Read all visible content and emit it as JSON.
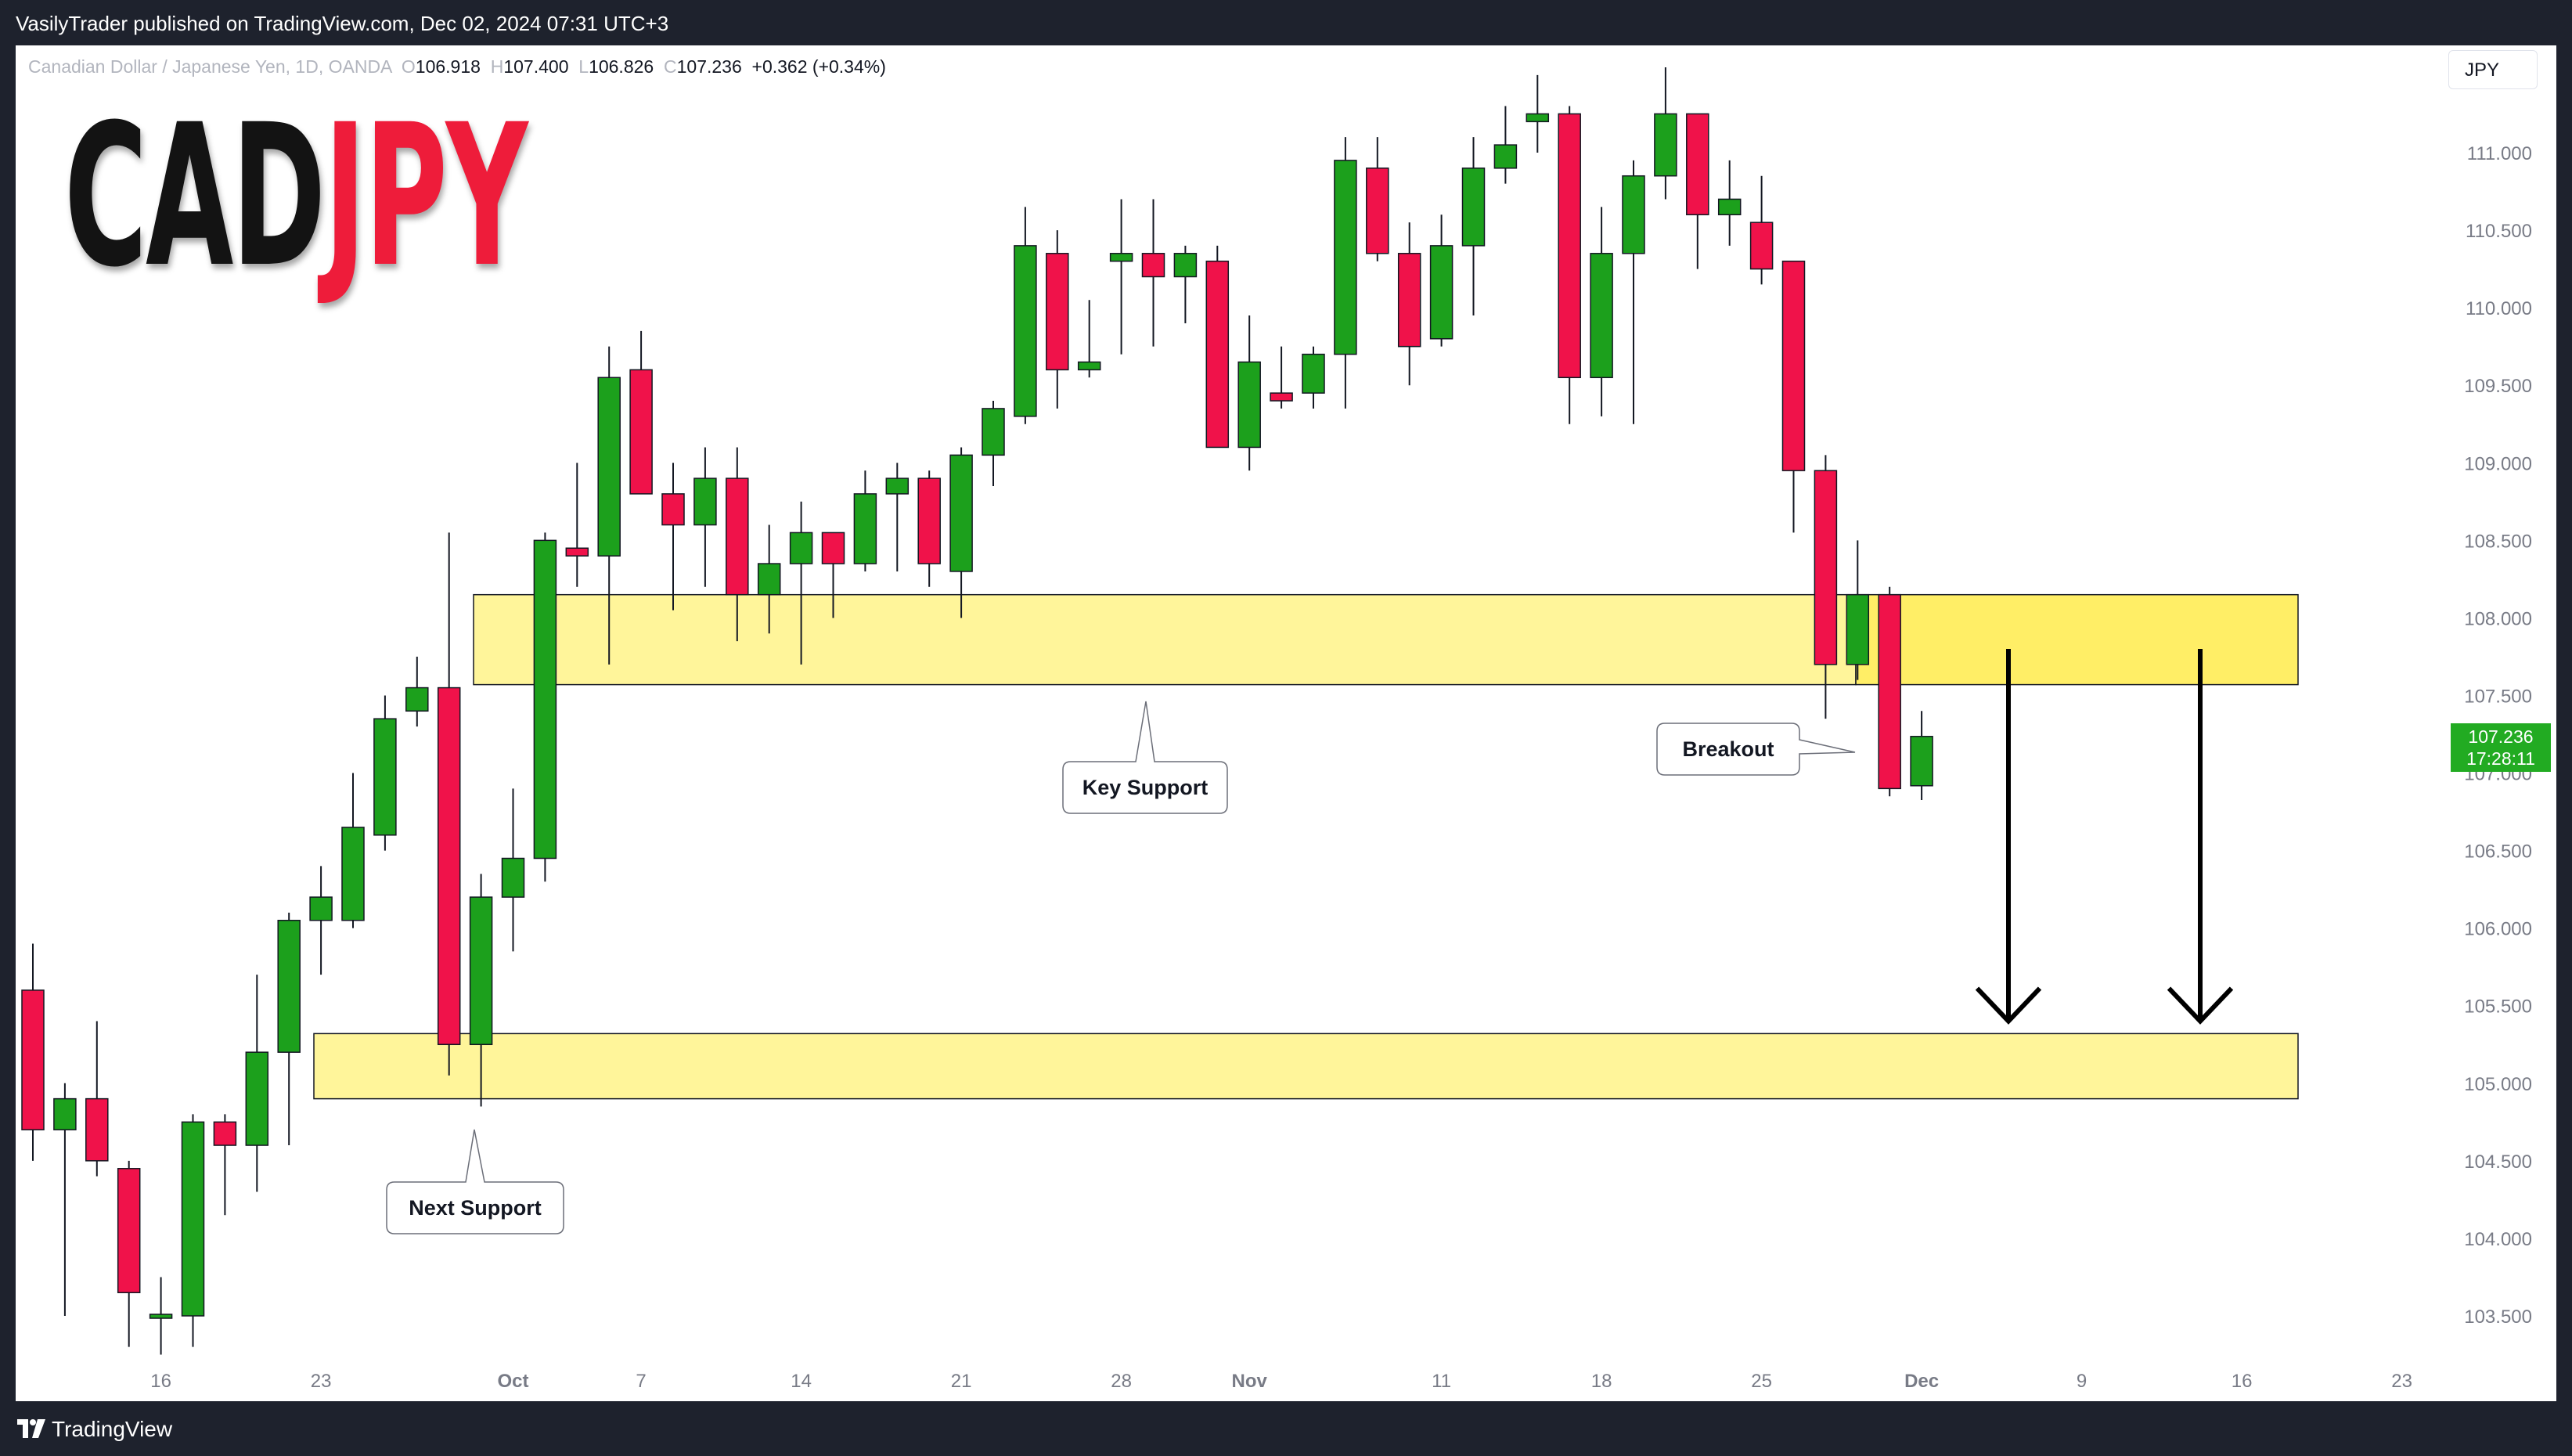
{
  "header": {
    "published": "VasilyTrader published on TradingView.com, Dec 02, 2024 07:31 UTC+3"
  },
  "symbol": {
    "name": "Canadian Dollar / Japanese Yen, 1D, OANDA",
    "open_label": "O",
    "open": "106.918",
    "high_label": "H",
    "high": "107.400",
    "low_label": "L",
    "low": "106.826",
    "close_label": "C",
    "close": "107.236",
    "change": "+0.362 (+0.34%)"
  },
  "title": {
    "base": "CAD",
    "quote": "JPY"
  },
  "currency": "JPY",
  "price_tag": {
    "price": "107.236",
    "countdown": "17:28:11"
  },
  "footer": {
    "brand": "TradingView"
  },
  "colors": {
    "up": "#1ca01c",
    "down": "#f0124a",
    "zone": "#fff59a",
    "zone_active": "#ffee66",
    "title_quote": "#ee1c3a",
    "price_tag": "#22ab22"
  },
  "chart_data": {
    "type": "candlestick",
    "yaxis": {
      "ticks": [
        "111.000",
        "110.500",
        "110.000",
        "109.500",
        "109.000",
        "108.500",
        "108.000",
        "107.500",
        "107.000",
        "106.500",
        "106.000",
        "105.500",
        "105.000",
        "104.500",
        "104.000",
        "103.500"
      ],
      "ylim": [
        103.0,
        111.8
      ]
    },
    "xaxis": {
      "ticks": [
        {
          "label": "16",
          "bold": false,
          "index": 4
        },
        {
          "label": "23",
          "bold": false,
          "index": 9
        },
        {
          "label": "Oct",
          "bold": true,
          "index": 15
        },
        {
          "label": "7",
          "bold": false,
          "index": 19
        },
        {
          "label": "14",
          "bold": false,
          "index": 24
        },
        {
          "label": "21",
          "bold": false,
          "index": 29
        },
        {
          "label": "28",
          "bold": false,
          "index": 34
        },
        {
          "label": "Nov",
          "bold": true,
          "index": 38
        },
        {
          "label": "11",
          "bold": false,
          "index": 44
        },
        {
          "label": "18",
          "bold": false,
          "index": 49
        },
        {
          "label": "25",
          "bold": false,
          "index": 54
        },
        {
          "label": "Dec",
          "bold": true,
          "index": 59
        },
        {
          "label": "9",
          "bold": false,
          "index": 64
        },
        {
          "label": "16",
          "bold": false,
          "index": 69
        },
        {
          "label": "23",
          "bold": false,
          "index": 74
        }
      ]
    },
    "candles": [
      {
        "o": 105.6,
        "h": 105.9,
        "l": 104.5,
        "c": 104.7
      },
      {
        "o": 104.7,
        "h": 105.0,
        "l": 103.5,
        "c": 104.9
      },
      {
        "o": 104.9,
        "h": 105.4,
        "l": 104.4,
        "c": 104.5
      },
      {
        "o": 104.45,
        "h": 104.5,
        "l": 103.3,
        "c": 103.65
      },
      {
        "o": 103.5,
        "h": 103.75,
        "l": 103.25,
        "c": 103.5
      },
      {
        "o": 103.5,
        "h": 104.8,
        "l": 103.3,
        "c": 104.75
      },
      {
        "o": 104.75,
        "h": 104.8,
        "l": 104.15,
        "c": 104.6
      },
      {
        "o": 104.6,
        "h": 105.7,
        "l": 104.3,
        "c": 105.2
      },
      {
        "o": 105.2,
        "h": 106.1,
        "l": 104.6,
        "c": 106.05
      },
      {
        "o": 106.05,
        "h": 106.4,
        "l": 105.7,
        "c": 106.2
      },
      {
        "o": 106.05,
        "h": 107.0,
        "l": 106.0,
        "c": 106.65
      },
      {
        "o": 106.6,
        "h": 107.5,
        "l": 106.5,
        "c": 107.35
      },
      {
        "o": 107.4,
        "h": 107.75,
        "l": 107.3,
        "c": 107.55
      },
      {
        "o": 107.55,
        "h": 108.55,
        "l": 105.05,
        "c": 105.25
      },
      {
        "o": 105.25,
        "h": 106.35,
        "l": 104.85,
        "c": 106.2
      },
      {
        "o": 106.2,
        "h": 106.9,
        "l": 105.85,
        "c": 106.45
      },
      {
        "o": 106.45,
        "h": 108.55,
        "l": 106.3,
        "c": 108.5
      },
      {
        "o": 108.45,
        "h": 109.0,
        "l": 108.2,
        "c": 108.4
      },
      {
        "o": 108.4,
        "h": 109.75,
        "l": 107.7,
        "c": 109.55
      },
      {
        "o": 109.6,
        "h": 109.85,
        "l": 108.8,
        "c": 108.8
      },
      {
        "o": 108.8,
        "h": 109.0,
        "l": 108.05,
        "c": 108.6
      },
      {
        "o": 108.6,
        "h": 109.1,
        "l": 108.2,
        "c": 108.9
      },
      {
        "o": 108.9,
        "h": 109.1,
        "l": 107.85,
        "c": 108.15
      },
      {
        "o": 108.15,
        "h": 108.6,
        "l": 107.9,
        "c": 108.35
      },
      {
        "o": 108.35,
        "h": 108.75,
        "l": 107.7,
        "c": 108.55
      },
      {
        "o": 108.55,
        "h": 108.55,
        "l": 108.0,
        "c": 108.35
      },
      {
        "o": 108.35,
        "h": 108.95,
        "l": 108.3,
        "c": 108.8
      },
      {
        "o": 108.8,
        "h": 109.0,
        "l": 108.3,
        "c": 108.9
      },
      {
        "o": 108.9,
        "h": 108.95,
        "l": 108.2,
        "c": 108.35
      },
      {
        "o": 108.3,
        "h": 109.1,
        "l": 108.0,
        "c": 109.05
      },
      {
        "o": 109.05,
        "h": 109.4,
        "l": 108.85,
        "c": 109.35
      },
      {
        "o": 109.3,
        "h": 110.65,
        "l": 109.25,
        "c": 110.4
      },
      {
        "o": 110.35,
        "h": 110.5,
        "l": 109.35,
        "c": 109.6
      },
      {
        "o": 109.6,
        "h": 110.05,
        "l": 109.55,
        "c": 109.65
      },
      {
        "o": 110.3,
        "h": 110.7,
        "l": 109.7,
        "c": 110.35
      },
      {
        "o": 110.35,
        "h": 110.7,
        "l": 109.75,
        "c": 110.2
      },
      {
        "o": 110.2,
        "h": 110.4,
        "l": 109.9,
        "c": 110.35
      },
      {
        "o": 110.3,
        "h": 110.4,
        "l": 109.1,
        "c": 109.1
      },
      {
        "o": 109.1,
        "h": 109.95,
        "l": 108.95,
        "c": 109.65
      },
      {
        "o": 109.45,
        "h": 109.75,
        "l": 109.35,
        "c": 109.4
      },
      {
        "o": 109.45,
        "h": 109.75,
        "l": 109.35,
        "c": 109.7
      },
      {
        "o": 109.7,
        "h": 111.1,
        "l": 109.35,
        "c": 110.95
      },
      {
        "o": 110.9,
        "h": 111.1,
        "l": 110.3,
        "c": 110.35
      },
      {
        "o": 110.35,
        "h": 110.55,
        "l": 109.5,
        "c": 109.75
      },
      {
        "o": 109.8,
        "h": 110.6,
        "l": 109.75,
        "c": 110.4
      },
      {
        "o": 110.4,
        "h": 111.1,
        "l": 109.95,
        "c": 110.9
      },
      {
        "o": 110.9,
        "h": 111.3,
        "l": 110.8,
        "c": 111.05
      },
      {
        "o": 111.2,
        "h": 111.5,
        "l": 111.0,
        "c": 111.25
      },
      {
        "o": 111.25,
        "h": 111.3,
        "l": 109.25,
        "c": 109.55
      },
      {
        "o": 109.55,
        "h": 110.65,
        "l": 109.3,
        "c": 110.35
      },
      {
        "o": 110.35,
        "h": 110.95,
        "l": 109.25,
        "c": 110.85
      },
      {
        "o": 110.85,
        "h": 111.55,
        "l": 110.7,
        "c": 111.25
      },
      {
        "o": 111.25,
        "h": 111.25,
        "l": 110.25,
        "c": 110.6
      },
      {
        "o": 110.6,
        "h": 110.95,
        "l": 110.4,
        "c": 110.7
      },
      {
        "o": 110.55,
        "h": 110.85,
        "l": 110.15,
        "c": 110.25
      },
      {
        "o": 110.3,
        "h": 110.3,
        "l": 108.55,
        "c": 108.95
      },
      {
        "o": 108.95,
        "h": 109.05,
        "l": 107.35,
        "c": 107.7
      },
      {
        "o": 107.7,
        "h": 108.5,
        "l": 107.6,
        "c": 108.15
      },
      {
        "o": 108.15,
        "h": 108.2,
        "l": 106.85,
        "c": 106.9
      },
      {
        "o": 106.918,
        "h": 107.4,
        "l": 106.826,
        "c": 107.236
      }
    ],
    "zones": [
      {
        "name": "Key Support",
        "top": 108.15,
        "bottom": 107.57
      },
      {
        "name": "Next Support",
        "top": 105.32,
        "bottom": 104.9
      }
    ],
    "annotations": [
      "Key Support",
      "Next Support",
      "Breakout"
    ],
    "arrows": [
      {
        "from": 107.8,
        "to": 105.4
      },
      {
        "from": 107.8,
        "to": 105.4
      }
    ],
    "last_price": 107.236
  }
}
